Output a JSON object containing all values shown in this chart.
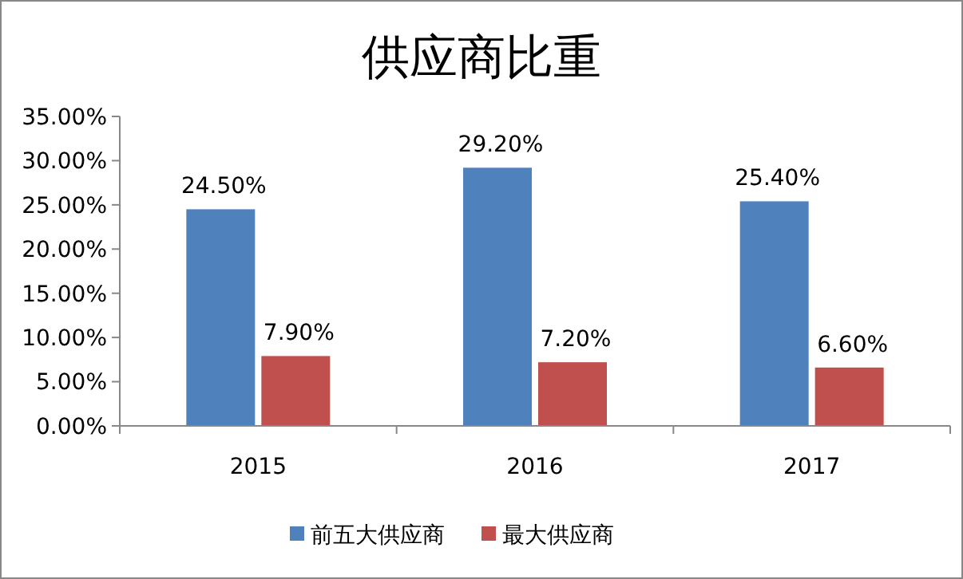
{
  "chart_data": {
    "type": "bar",
    "title": "供应商比重",
    "categories": [
      "2015",
      "2016",
      "2017"
    ],
    "series": [
      {
        "name": "前五大供应商",
        "color": "#4f81bd",
        "values": [
          24.5,
          29.2,
          25.4
        ],
        "value_labels": [
          "24.50%",
          "29.20%",
          "25.40%"
        ]
      },
      {
        "name": "最大供应商",
        "color": "#c0504d",
        "values": [
          7.9,
          7.2,
          6.6
        ],
        "value_labels": [
          "7.90%",
          "7.20%",
          "6.60%"
        ]
      }
    ],
    "ylim": [
      0,
      35
    ],
    "yticks": [
      {
        "value": 0,
        "label": "0.00%"
      },
      {
        "value": 5,
        "label": "5.00%"
      },
      {
        "value": 10,
        "label": "10.00%"
      },
      {
        "value": 15,
        "label": "15.00%"
      },
      {
        "value": 20,
        "label": "20.00%"
      },
      {
        "value": 25,
        "label": "25.00%"
      },
      {
        "value": 30,
        "label": "30.00%"
      },
      {
        "value": 35,
        "label": "35.00%"
      }
    ],
    "legend": "bottom"
  }
}
